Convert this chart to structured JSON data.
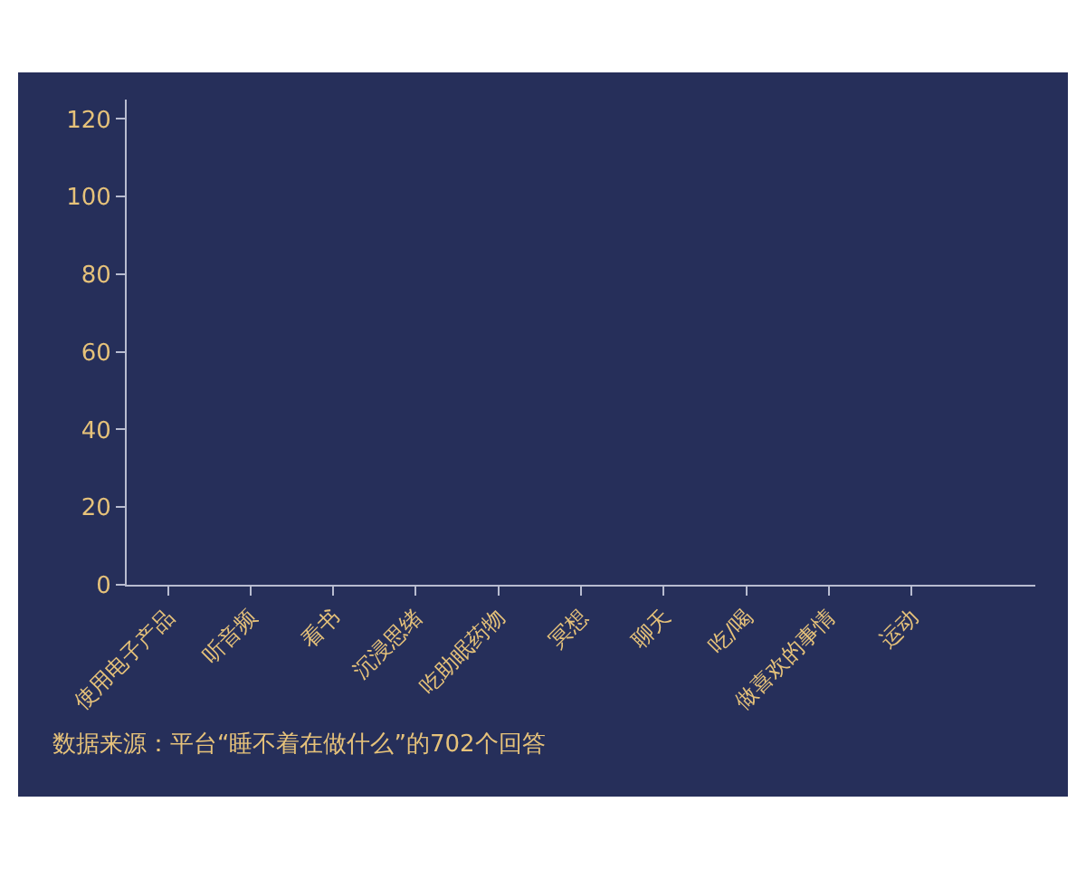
{
  "chart_data": {
    "type": "bar",
    "categories": [
      "使用电子产品",
      "听音频",
      "看书",
      "沉浸思绪",
      "吃助眠药物",
      "冥想",
      "聊天",
      "吃/喝",
      "做喜欢的事情",
      "运动"
    ],
    "values": [
      0,
      0,
      0,
      0,
      0,
      0,
      0,
      0,
      0,
      0
    ],
    "ylim": [
      0,
      125
    ],
    "yticks": [
      0,
      20,
      40,
      60,
      80,
      100,
      120
    ],
    "annotations": [
      "数据来源：平台“睡不着在做什么”的702个回答"
    ],
    "grid": false
  }
}
